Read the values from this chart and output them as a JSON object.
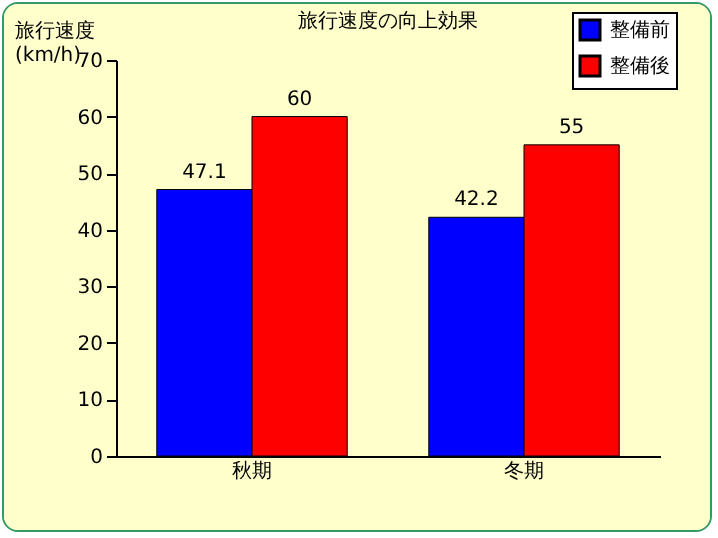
{
  "chart_data": {
    "type": "bar",
    "title": "旅行速度の向上効果",
    "ylabel": "旅行速度\n(km/h)",
    "categories": [
      "秋期",
      "冬期"
    ],
    "series": [
      {
        "name": "整備前",
        "color": "#0000ff",
        "values": [
          47.1,
          42.2
        ]
      },
      {
        "name": "整備後",
        "color": "#ff0000",
        "values": [
          60,
          55
        ]
      }
    ],
    "ylim": [
      0,
      70
    ],
    "yticks": [
      0,
      10,
      20,
      30,
      40,
      50,
      60,
      70
    ],
    "grid": false,
    "legend": "top right",
    "data_labels": true
  }
}
